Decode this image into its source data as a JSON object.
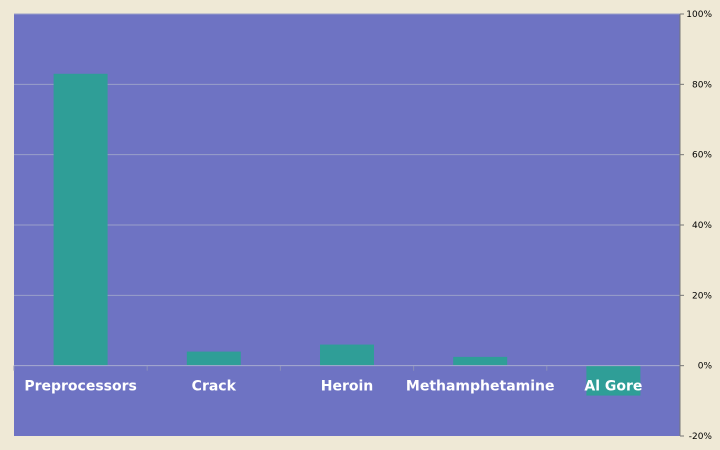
{
  "chart_data": {
    "type": "bar",
    "categories": [
      "Preprocessors",
      "Crack",
      "Heroin",
      "Methamphetamine",
      "Al Gore"
    ],
    "values": [
      83,
      4,
      6,
      2.5,
      -8.5
    ],
    "title": "",
    "xlabel": "",
    "ylabel": "",
    "ylim": [
      -20,
      100
    ],
    "yticks": [
      100,
      80,
      60,
      40,
      20,
      0,
      -20
    ],
    "ytick_labels": [
      "100%",
      "80%",
      "60%",
      "40%",
      "20%",
      "0%",
      "-20%"
    ],
    "y_axis_side": "right",
    "grid": true,
    "legend": "none"
  },
  "colors": {
    "background": "#efe9d6",
    "plot_area": "#6e73c3",
    "bar": "#2f9e97",
    "gridline": "#9a9fc8",
    "label": "#ffffff"
  }
}
